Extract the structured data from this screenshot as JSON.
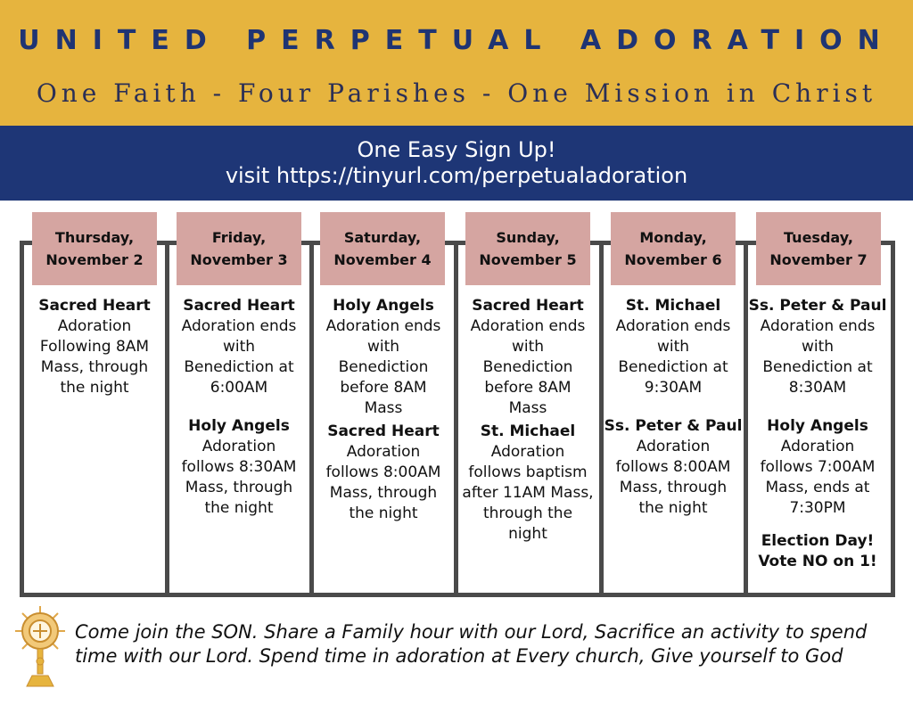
{
  "header": {
    "title": "UNITED PERPETUAL ADORATION",
    "subtitle": "One Faith - Four Parishes - One Mission in Christ"
  },
  "signup": {
    "line1": "One Easy Sign Up!",
    "line2": "visit https://tinyurl.com/perpetualadoration"
  },
  "days": [
    {
      "day": "Thursday,",
      "date": "November 2",
      "entries": [
        {
          "parish": "Sacred Heart",
          "desc": [
            "Adoration",
            "Following 8AM",
            "Mass, through",
            "the night"
          ]
        }
      ]
    },
    {
      "day": "Friday,",
      "date": "November 3",
      "entries": [
        {
          "parish": "Sacred Heart",
          "desc": [
            "Adoration ends",
            "with",
            "Benediction at",
            "6:00AM"
          ]
        },
        {
          "parish": "Holy Angels",
          "desc": [
            "Adoration",
            "follows  8:30AM",
            "Mass, through",
            "the night"
          ]
        }
      ]
    },
    {
      "day": "Saturday,",
      "date": "November 4",
      "entries": [
        {
          "parish": "Holy Angels",
          "desc": [
            "Adoration ends",
            "with",
            "Benediction",
            "before 8AM",
            "Mass"
          ]
        },
        {
          "parish": "Sacred Heart",
          "desc": [
            "Adoration",
            "follows  8:00AM",
            "Mass, through",
            "the night"
          ]
        }
      ]
    },
    {
      "day": "Sunday,",
      "date": "November 5",
      "entries": [
        {
          "parish": "Sacred Heart",
          "desc": [
            "Adoration ends",
            "with",
            "Benediction",
            "before 8AM",
            "Mass"
          ]
        },
        {
          "parish": "St. Michael",
          "desc": [
            "Adoration",
            "follows baptism",
            "after 11AM Mass,",
            "through the",
            "night"
          ]
        }
      ]
    },
    {
      "day": "Monday,",
      "date": "November 6",
      "entries": [
        {
          "parish": "St. Michael",
          "desc": [
            "Adoration ends",
            "with",
            "Benediction at",
            "9:30AM"
          ]
        },
        {
          "parish": "Ss. Peter & Paul",
          "desc": [
            "Adoration",
            "follows  8:00AM",
            "Mass, through",
            "the night"
          ]
        }
      ]
    },
    {
      "day": "Tuesday,",
      "date": "November 7",
      "entries": [
        {
          "parish": "Ss. Peter & Paul",
          "desc": [
            "Adoration ends",
            "with",
            "Benediction at",
            "8:30AM"
          ]
        },
        {
          "parish": "Holy Angels",
          "desc": [
            "Adoration",
            "follows  7:00AM",
            "Mass, ends at",
            "7:30PM"
          ]
        }
      ],
      "note": [
        "Election Day!",
        "Vote NO on 1!"
      ]
    }
  ],
  "footer": {
    "line1": "Come join the SON. Share a Family hour with our Lord, Sacrifice an activity to spend",
    "line2": "time with our Lord. Spend time in adoration at Every church, Give yourself to God",
    "icon": "monstrance-icon"
  },
  "colors": {
    "banner": "#e6b43e",
    "navy": "#1e3676",
    "header_box": "#d5a5a1",
    "frame": "#4a4a4a"
  }
}
